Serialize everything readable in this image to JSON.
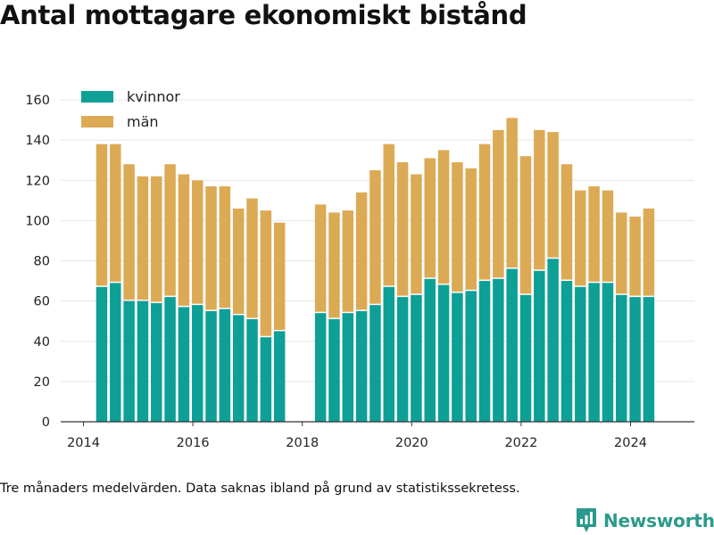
{
  "chart_data": {
    "type": "bar",
    "stacked": true,
    "title": "Antal mottagare ekonomiskt bistånd",
    "xlabel": "",
    "ylabel": "",
    "ylim": [
      0,
      160
    ],
    "yticks": [
      0,
      20,
      40,
      60,
      80,
      100,
      120,
      140,
      160
    ],
    "xlim": [
      "2013-08",
      "2025-03"
    ],
    "xticks": [
      "2014",
      "2016",
      "2018",
      "2020",
      "2022",
      "2024"
    ],
    "grid": true,
    "legend_position": "top-left",
    "x": [
      "2014-05",
      "2014-08",
      "2014-11",
      "2015-02",
      "2015-05",
      "2015-08",
      "2015-11",
      "2016-02",
      "2016-05",
      "2016-08",
      "2016-11",
      "2017-02",
      "2017-05",
      "2017-08",
      "2018-05",
      "2018-08",
      "2018-11",
      "2019-02",
      "2019-05",
      "2019-08",
      "2019-11",
      "2020-02",
      "2020-05",
      "2020-08",
      "2020-11",
      "2021-02",
      "2021-05",
      "2021-08",
      "2021-11",
      "2022-02",
      "2022-05",
      "2022-08",
      "2022-11",
      "2023-02",
      "2023-05",
      "2023-08",
      "2023-11",
      "2024-02",
      "2024-05"
    ],
    "series": [
      {
        "name": "kvinnor",
        "color": "#0e9f97",
        "values": [
          67,
          69,
          60,
          60,
          59,
          62,
          57,
          58,
          55,
          56,
          53,
          51,
          42,
          45,
          54,
          51,
          54,
          55,
          58,
          67,
          62,
          63,
          71,
          68,
          64,
          65,
          70,
          71,
          76,
          63,
          75,
          81,
          70,
          67,
          69,
          69,
          63,
          62,
          62
        ]
      },
      {
        "name": "män",
        "color": "#dcaa55",
        "values": [
          71,
          69,
          68,
          62,
          63,
          66,
          66,
          62,
          62,
          61,
          53,
          60,
          63,
          54,
          54,
          53,
          51,
          59,
          67,
          71,
          67,
          60,
          60,
          67,
          65,
          61,
          68,
          74,
          75,
          69,
          70,
          63,
          58,
          48,
          48,
          46,
          41,
          40,
          44
        ]
      }
    ]
  },
  "footnote": "Tre månaders medelvärden. Data saknas ibland på grund av statistikssekretess.",
  "brand": {
    "name": "Newsworthy",
    "icon": "bar-chart-logo-icon",
    "color": "#2b9a8c"
  }
}
